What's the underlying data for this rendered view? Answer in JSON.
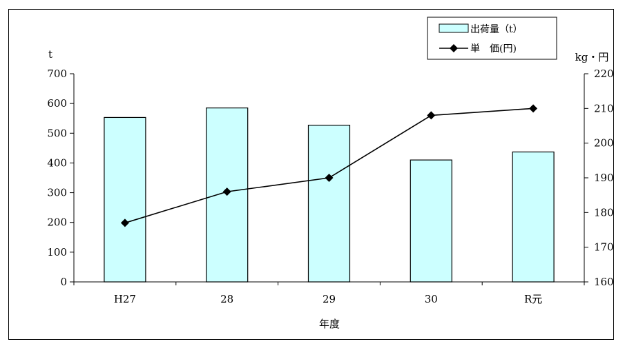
{
  "chart_data": {
    "type": "bar",
    "categories": [
      "H27",
      "28",
      "29",
      "30",
      "R元"
    ],
    "series": [
      {
        "name": "出荷量（t）",
        "type": "bar",
        "axis": "left",
        "values": [
          553,
          585,
          527,
          410,
          437
        ]
      },
      {
        "name": "単　価(円)",
        "type": "line",
        "axis": "right",
        "values": [
          177,
          186,
          190,
          208,
          210
        ]
      }
    ],
    "xlabel": "年度",
    "ylabel_left": "t",
    "ylabel_right": "kg・円",
    "ylim_left": [
      0,
      700
    ],
    "ylim_right": [
      160,
      220
    ],
    "yticks_left": [
      "0",
      "100",
      "200",
      "300",
      "400",
      "500",
      "600",
      "700"
    ],
    "yticks_right": [
      "160",
      "170",
      "180",
      "190",
      "200",
      "210",
      "220"
    ],
    "legend_position": "top-right",
    "grid": false,
    "colors": {
      "bar_fill": "#ccffff",
      "bar_stroke": "#000000",
      "line": "#000000"
    }
  }
}
